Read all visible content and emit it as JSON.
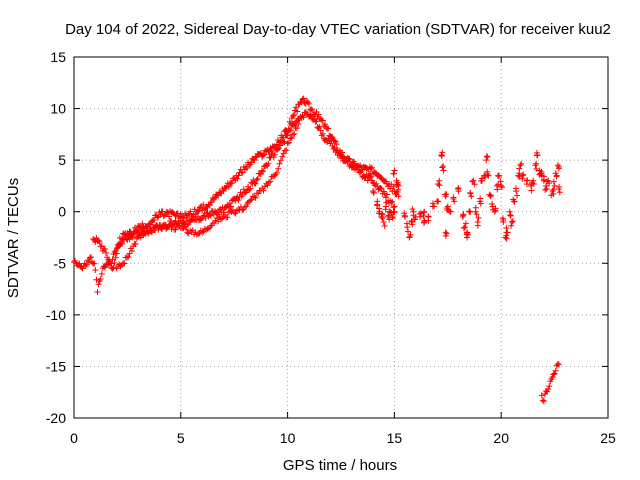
{
  "chart_data": {
    "type": "scatter",
    "title": "Day 104 of 2022, Sidereal Day-to-day VTEC variation (SDTVAR) for receiver kuu2",
    "xlabel": "GPS time / hours",
    "ylabel": "SDTVAR / TECUs",
    "xlim": [
      0,
      25
    ],
    "ylim": [
      -20,
      15
    ],
    "xticks": [
      0,
      5,
      10,
      15,
      20,
      25
    ],
    "yticks": [
      -20,
      -15,
      -10,
      -5,
      0,
      5,
      10,
      15
    ],
    "grid": true,
    "marker": "+",
    "color": "#ff0000",
    "series": [
      {
        "name": "kuu2",
        "trace_a": [
          [
            0.0,
            -4.8
          ],
          [
            0.2,
            -5.0
          ],
          [
            0.4,
            -5.5
          ],
          [
            0.6,
            -5.0
          ],
          [
            0.8,
            -4.5
          ],
          [
            1.0,
            -5.5
          ],
          [
            1.1,
            -8.0
          ],
          [
            1.2,
            -6.5
          ],
          [
            1.4,
            -5.5
          ],
          [
            1.6,
            -5.0
          ],
          [
            1.8,
            -5.5
          ],
          [
            2.0,
            -4.0
          ],
          [
            2.2,
            -3.0
          ],
          [
            2.5,
            -2.5
          ],
          [
            3.0,
            -2.0
          ],
          [
            3.5,
            -1.8
          ],
          [
            4.0,
            -1.5
          ],
          [
            4.5,
            -1.2
          ],
          [
            5.0,
            -1.0
          ],
          [
            5.5,
            -1.0
          ],
          [
            6.0,
            -0.5
          ],
          [
            6.5,
            -0.2
          ],
          [
            7.0,
            0.2
          ],
          [
            7.5,
            1.0
          ],
          [
            8.0,
            2.0
          ],
          [
            8.5,
            3.0
          ],
          [
            9.0,
            4.5
          ],
          [
            9.5,
            6.0
          ],
          [
            10.0,
            7.5
          ],
          [
            10.3,
            8.5
          ],
          [
            10.6,
            9.0
          ],
          [
            10.9,
            9.5
          ],
          [
            11.2,
            9.0
          ],
          [
            11.5,
            8.0
          ],
          [
            11.8,
            7.0
          ],
          [
            12.1,
            6.5
          ],
          [
            12.4,
            5.5
          ],
          [
            12.7,
            5.0
          ],
          [
            13.0,
            4.5
          ],
          [
            13.3,
            4.0
          ],
          [
            13.6,
            3.5
          ],
          [
            14.0,
            3.0
          ],
          [
            14.4,
            2.0
          ],
          [
            14.8,
            1.0
          ],
          [
            15.0,
            0.5
          ]
        ],
        "trace_b": [
          [
            0.9,
            -2.5
          ],
          [
            1.2,
            -3.0
          ],
          [
            1.5,
            -4.0
          ],
          [
            1.7,
            -5.0
          ],
          [
            1.9,
            -4.0
          ],
          [
            2.1,
            -3.0
          ],
          [
            2.3,
            -2.3
          ],
          [
            2.6,
            -2.2
          ],
          [
            3.0,
            -1.6
          ],
          [
            3.5,
            -1.2
          ],
          [
            4.0,
            -0.3
          ],
          [
            4.5,
            -0.2
          ],
          [
            5.0,
            -0.5
          ],
          [
            5.5,
            -0.2
          ],
          [
            6.0,
            0.3
          ],
          [
            6.5,
            1.2
          ],
          [
            7.0,
            2.2
          ],
          [
            7.5,
            3.2
          ],
          [
            8.0,
            4.2
          ],
          [
            8.5,
            5.2
          ],
          [
            9.0,
            5.8
          ],
          [
            9.5,
            6.5
          ],
          [
            10.0,
            8.0
          ],
          [
            10.3,
            9.5
          ],
          [
            10.6,
            10.5
          ],
          [
            10.8,
            10.8
          ],
          [
            11.0,
            10.2
          ],
          [
            11.3,
            9.5
          ],
          [
            11.6,
            8.8
          ],
          [
            12.0,
            7.5
          ],
          [
            12.4,
            6.0
          ],
          [
            12.8,
            5.0
          ],
          [
            13.2,
            4.5
          ],
          [
            13.6,
            4.2
          ],
          [
            14.0,
            4.0
          ],
          [
            14.4,
            3.5
          ],
          [
            14.8,
            2.5
          ],
          [
            15.2,
            1.5
          ]
        ],
        "trace_c": [
          [
            2.0,
            -5.5
          ],
          [
            2.3,
            -5.0
          ],
          [
            2.6,
            -4.0
          ],
          [
            3.0,
            -2.5
          ],
          [
            3.5,
            -2.0
          ],
          [
            4.0,
            -1.5
          ],
          [
            4.5,
            -1.5
          ],
          [
            5.0,
            -1.5
          ],
          [
            5.5,
            -2.0
          ],
          [
            6.0,
            -2.0
          ],
          [
            6.5,
            -1.0
          ],
          [
            7.0,
            -0.5
          ],
          [
            7.5,
            0.0
          ],
          [
            8.0,
            0.5
          ],
          [
            8.5,
            1.5
          ],
          [
            9.0,
            2.5
          ],
          [
            9.5,
            4.0
          ],
          [
            10.0,
            6.5
          ],
          [
            10.5,
            8.5
          ]
        ],
        "scatter_points": [
          [
            13.8,
            3.5
          ],
          [
            14.0,
            2.0
          ],
          [
            14.2,
            1.0
          ],
          [
            14.3,
            0.0
          ],
          [
            14.4,
            -0.5
          ],
          [
            14.5,
            -1.0
          ],
          [
            14.6,
            0.5
          ],
          [
            14.7,
            -0.5
          ],
          [
            14.8,
            0.0
          ],
          [
            14.9,
            -0.5
          ],
          [
            15.0,
            0.0
          ],
          [
            15.0,
            4.0
          ],
          [
            15.1,
            3.0
          ],
          [
            15.2,
            2.5
          ],
          [
            15.5,
            -0.5
          ],
          [
            15.6,
            -1.5
          ],
          [
            15.7,
            -2.5
          ],
          [
            15.8,
            -1.0
          ],
          [
            15.9,
            0.0
          ],
          [
            16.0,
            -0.5
          ],
          [
            16.2,
            -0.5
          ],
          [
            16.4,
            0.0
          ],
          [
            16.6,
            -0.5
          ],
          [
            16.8,
            0.5
          ],
          [
            17.0,
            1.0
          ],
          [
            17.1,
            3.0
          ],
          [
            17.2,
            5.5
          ],
          [
            17.3,
            4.0
          ],
          [
            17.4,
            1.5
          ],
          [
            17.5,
            0.5
          ],
          [
            17.6,
            0.0
          ],
          [
            17.8,
            1.0
          ],
          [
            18.0,
            2.0
          ],
          [
            18.2,
            -0.5
          ],
          [
            18.3,
            -1.5
          ],
          [
            18.4,
            -2.5
          ],
          [
            18.5,
            0.0
          ],
          [
            18.6,
            1.5
          ],
          [
            18.7,
            3.0
          ],
          [
            18.8,
            0.0
          ],
          [
            18.9,
            -1.0
          ],
          [
            19.0,
            1.0
          ],
          [
            19.1,
            3.0
          ],
          [
            19.2,
            3.5
          ],
          [
            19.3,
            5.0
          ],
          [
            19.4,
            3.5
          ],
          [
            19.5,
            1.5
          ],
          [
            19.6,
            0.5
          ],
          [
            19.7,
            0.0
          ],
          [
            19.8,
            2.5
          ],
          [
            19.9,
            3.5
          ],
          [
            20.0,
            2.5
          ],
          [
            20.1,
            -1.0
          ],
          [
            20.2,
            -2.5
          ],
          [
            20.3,
            -2.0
          ],
          [
            20.4,
            0.0
          ],
          [
            20.5,
            -1.0
          ],
          [
            20.6,
            1.0
          ],
          [
            20.7,
            2.0
          ],
          [
            20.8,
            3.5
          ],
          [
            20.9,
            4.5
          ],
          [
            21.0,
            3.5
          ],
          [
            21.2,
            3.0
          ],
          [
            21.4,
            2.5
          ],
          [
            21.5,
            3.0
          ],
          [
            21.6,
            4.5
          ],
          [
            21.7,
            5.5
          ],
          [
            21.8,
            4.0
          ],
          [
            21.9,
            3.5
          ],
          [
            22.0,
            3.0
          ],
          [
            22.1,
            2.5
          ],
          [
            22.2,
            3.0
          ],
          [
            22.4,
            2.0
          ],
          [
            22.5,
            2.5
          ],
          [
            22.6,
            3.5
          ],
          [
            22.7,
            4.2
          ],
          [
            22.7,
            2.2
          ],
          [
            17.4,
            -2.0
          ],
          [
            18.4,
            -2.0
          ],
          [
            16.4,
            -1.0
          ]
        ],
        "late_segment": [
          [
            21.9,
            -18.0
          ],
          [
            22.0,
            -18.2
          ],
          [
            22.1,
            -17.5
          ],
          [
            22.2,
            -17.0
          ],
          [
            22.3,
            -16.5
          ],
          [
            22.4,
            -16.0
          ],
          [
            22.5,
            -15.5
          ],
          [
            22.6,
            -15.0
          ],
          [
            22.7,
            -14.8
          ]
        ]
      }
    ]
  }
}
